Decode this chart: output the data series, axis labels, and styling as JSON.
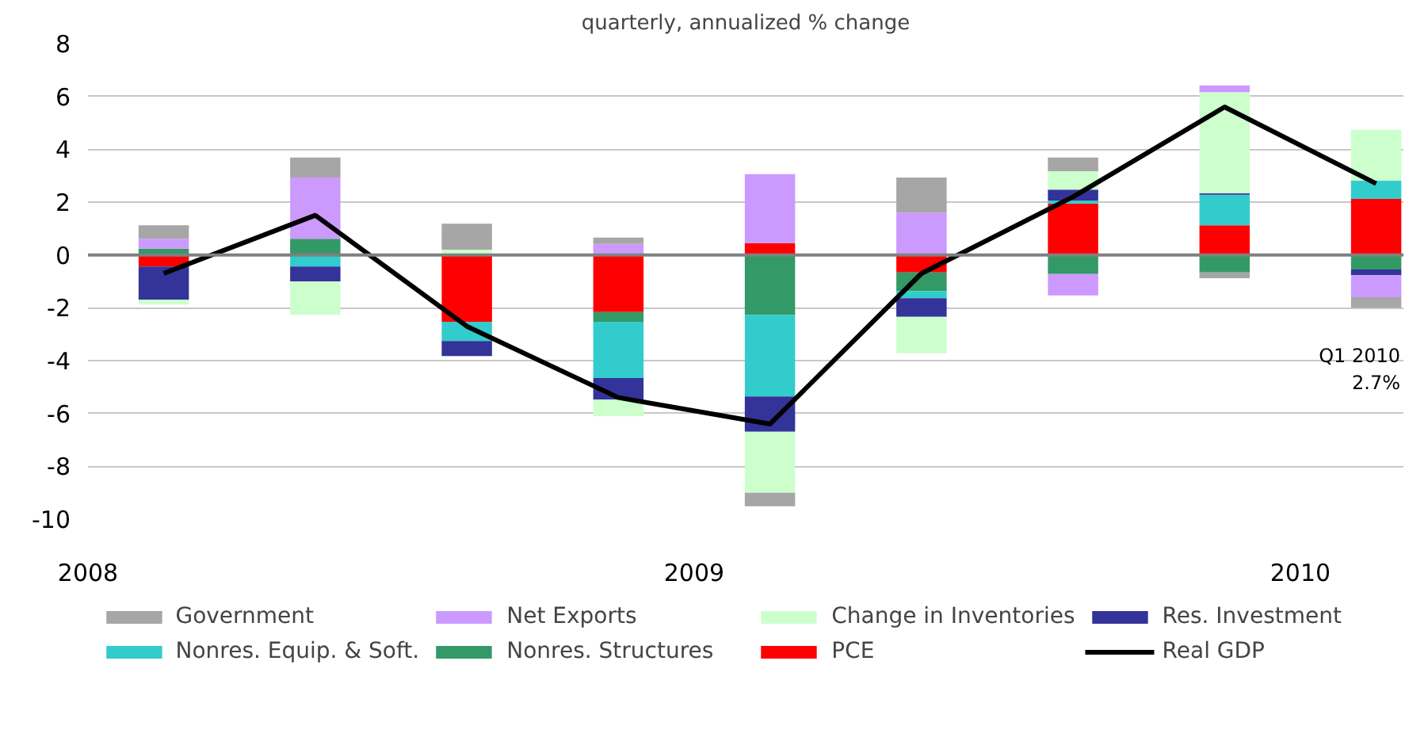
{
  "chart_data": {
    "type": "bar",
    "stacked": true,
    "subtitle": "quarterly, annualized % change",
    "x": [
      2008.125,
      2008.375,
      2008.625,
      2008.875,
      2009.125,
      2009.375,
      2009.625,
      2009.875,
      2010.125
    ],
    "xlim": [
      2008.0,
      2010.17
    ],
    "xticks": [
      2008,
      2009,
      2010
    ],
    "ylim": [
      -10,
      8
    ],
    "yticks": [
      -10,
      -8,
      -6,
      -4,
      -2,
      0,
      2,
      4,
      6,
      8
    ],
    "grid": "y",
    "legend": "bottom",
    "series": [
      {
        "name": "PCE",
        "color": "#ff0000",
        "values": [
          -0.44,
          0,
          -2.53,
          -2.16,
          0.44,
          -0.66,
          1.95,
          1.12,
          2.12
        ]
      },
      {
        "name": "Nonres. Structures",
        "color": "#339966",
        "values": [
          0.24,
          0.61,
          0,
          -0.37,
          -2.27,
          -0.71,
          -0.72,
          -0.66,
          -0.55
        ]
      },
      {
        "name": "Nonres. Equip. & Soft.",
        "color": "#33cccc",
        "values": [
          0,
          -0.44,
          -0.73,
          -2.13,
          -3.09,
          -0.27,
          0.11,
          1.16,
          0.7
        ]
      },
      {
        "name": "Res. Investment",
        "color": "#333399",
        "values": [
          -1.26,
          -0.56,
          -0.57,
          -0.82,
          -1.33,
          -0.7,
          0.41,
          0.05,
          -0.22
        ]
      },
      {
        "name": "Change in Inventories",
        "color": "#ccffcc",
        "values": [
          -0.18,
          -1.27,
          0.2,
          -0.62,
          -2.31,
          -1.38,
          0.7,
          3.83,
          1.92
        ]
      },
      {
        "name": "Net Exports",
        "color": "#cc99ff",
        "values": [
          0.37,
          2.32,
          0,
          0.42,
          2.62,
          1.6,
          -0.81,
          0.26,
          -0.83
        ]
      },
      {
        "name": "Government",
        "color": "#a6a6a6",
        "values": [
          0.51,
          0.76,
          0.98,
          0.24,
          -0.51,
          1.33,
          0.52,
          -0.22,
          -0.4
        ]
      },
      {
        "name": "Real GDP",
        "type": "line",
        "color": "#000000",
        "x": [
          2008.125,
          2008.375,
          2008.625,
          2008.875,
          2009.125,
          2009.375,
          2009.625,
          2009.875,
          2010.125
        ],
        "values": [
          -0.7,
          1.5,
          -2.7,
          -5.4,
          -6.4,
          -0.7,
          2.2,
          5.6,
          2.7
        ]
      }
    ],
    "ref_lines": [
      {
        "axis": "y",
        "value": 0,
        "color": "#808080"
      }
    ],
    "annotations": [
      "Q1 2010\n2.7%"
    ]
  }
}
